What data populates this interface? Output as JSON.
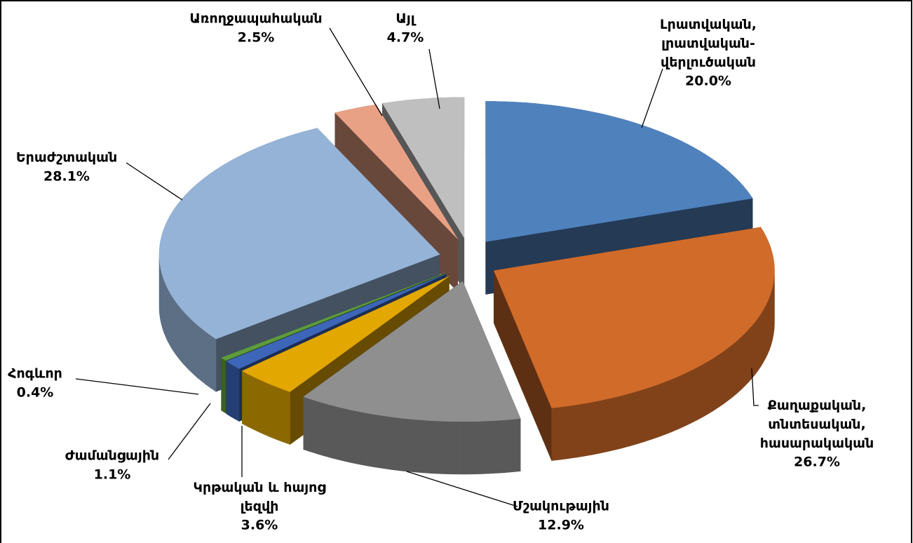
{
  "chart_data": {
    "type": "pie3d",
    "categories": [
      "Լրատվական,\nլրատվական-\nվերլուծական",
      "Քաղաքական,\nտնտեսական,\nհասարակական",
      "Մշակութային",
      "Կրթական և հայոց\nլեզվի",
      "Ժամանցային",
      "Հոգևոր",
      "Երաժշտական",
      "Առողջապահական",
      "Այլ"
    ],
    "values": [
      20.0,
      26.7,
      12.9,
      3.6,
      1.1,
      0.4,
      28.1,
      2.5,
      4.7
    ],
    "value_labels": [
      "20.0%",
      "26.7%",
      "12.9%",
      "3.6%",
      "1.1%",
      "0.4%",
      "28.1%",
      "2.5%",
      "4.7%"
    ],
    "colors": [
      "#4f81bd",
      "#d06b2a",
      "#8f8f8f",
      "#e2a700",
      "#3d66b8",
      "#5d9b3c",
      "#95b3d7",
      "#e9a185",
      "#bfbfbf"
    ]
  }
}
